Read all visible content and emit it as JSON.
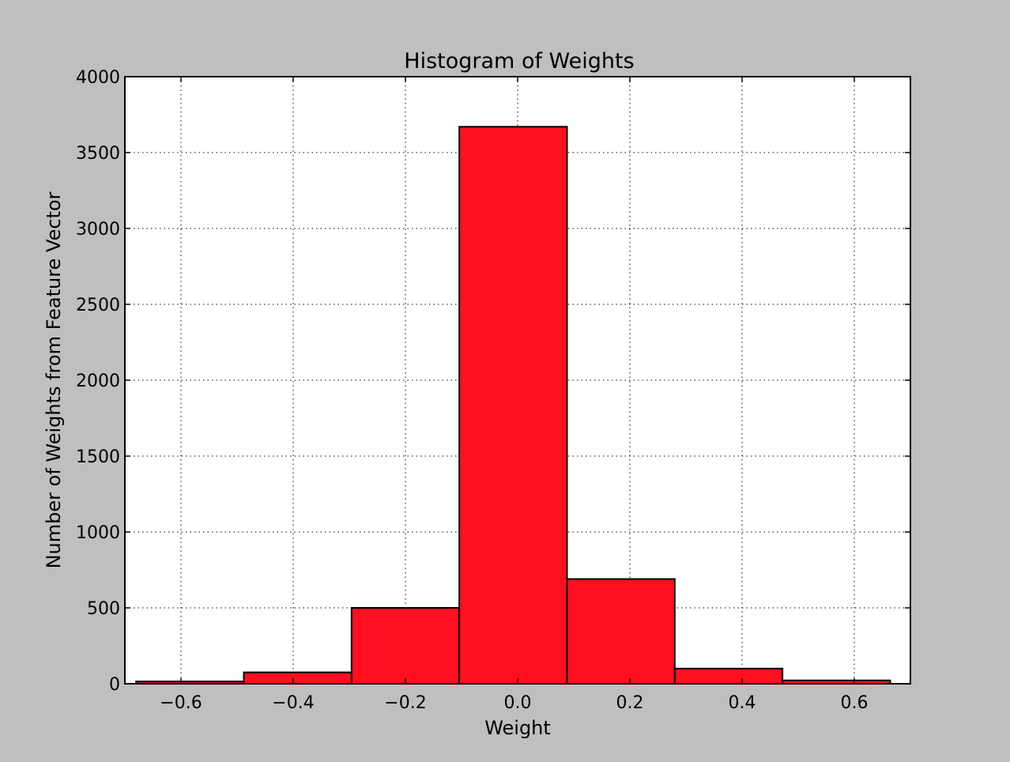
{
  "colors": {
    "figure_background": "#bfbfbf",
    "plot_background": "#ffffff",
    "bar_fill": "#ff0f1f",
    "bar_edge": "#000000",
    "grid": "#000000"
  },
  "chart_data": {
    "type": "bar",
    "title": "Histogram of Weights",
    "xlabel": "Weight",
    "ylabel": "Number of Weights from Feature Vector",
    "xlim": [
      -0.7,
      0.7
    ],
    "ylim": [
      0,
      4000
    ],
    "xticks": [
      -0.6,
      -0.4,
      -0.2,
      0.0,
      0.2,
      0.4,
      0.6
    ],
    "xtick_labels": [
      "−0.6",
      "−0.4",
      "−0.2",
      "0.0",
      "0.2",
      "0.4",
      "0.6"
    ],
    "yticks": [
      0,
      500,
      1000,
      1500,
      2000,
      2500,
      3000,
      3500,
      4000
    ],
    "ytick_labels": [
      "0",
      "500",
      "1000",
      "1500",
      "2000",
      "2500",
      "3000",
      "3500",
      "4000"
    ],
    "grid": true,
    "bins": [
      {
        "x0": -0.68,
        "x1": -0.488,
        "count": 15
      },
      {
        "x0": -0.488,
        "x1": -0.296,
        "count": 75
      },
      {
        "x0": -0.296,
        "x1": -0.104,
        "count": 500
      },
      {
        "x0": -0.104,
        "x1": 0.088,
        "count": 3670
      },
      {
        "x0": 0.088,
        "x1": 0.28,
        "count": 690
      },
      {
        "x0": 0.28,
        "x1": 0.472,
        "count": 100
      },
      {
        "x0": 0.472,
        "x1": 0.664,
        "count": 22
      }
    ]
  }
}
